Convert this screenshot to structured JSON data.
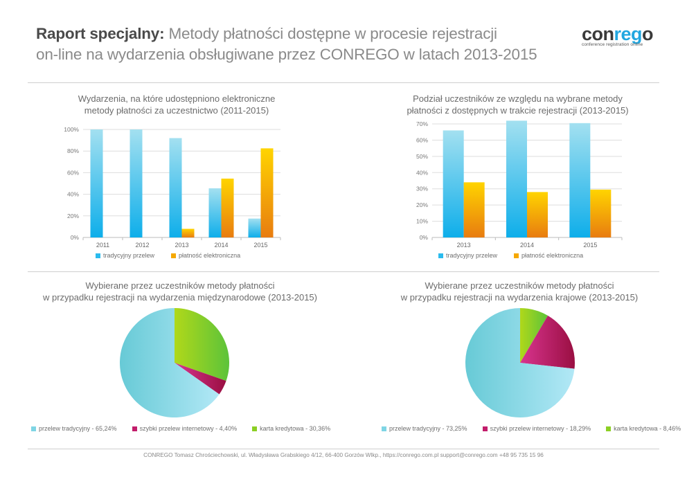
{
  "header": {
    "title_bold": "Raport specjalny:",
    "title_rest_line1": "Metody płatności dostępne w procesie rejestracji",
    "title_line2": "on-line na wydarzenia obsługiwane przez CONREGO w latach 2013-2015"
  },
  "logo": {
    "word_part1": "con",
    "word_accent": "reg",
    "word_part2": "o",
    "tagline": "conference registration online"
  },
  "colors": {
    "blue_top": "#a3e0f0",
    "blue_bottom": "#0eaeea",
    "orange_top": "#ffd400",
    "orange_bottom": "#e87c10",
    "pie_blue_left": "#67cad6",
    "pie_blue_right": "#b2e8f6",
    "pie_magenta_left": "#d8348f",
    "pie_magenta_right": "#9a0f42",
    "pie_green_left": "#b0d81a",
    "pie_green_right": "#5cc33a",
    "grid": "#dddddd",
    "axis_text": "#777777"
  },
  "chart_data": [
    {
      "type": "bar",
      "title": "Wydarzenia, na które udostępniono elektroniczne metody płatności za uczestnictwo (2011-2015)",
      "title_lines": [
        "Wydarzenia, na które udostępniono elektroniczne",
        "metody płatności za uczestnictwo (2011-2015)"
      ],
      "categories": [
        "2011",
        "2012",
        "2013",
        "2014",
        "2015"
      ],
      "series": [
        {
          "name": "tradycyjny przelew",
          "values": [
            100,
            100,
            92,
            45.5,
            17.5
          ]
        },
        {
          "name": "płatność elektroniczna",
          "values": [
            0,
            0,
            8,
            54.5,
            82.5
          ]
        }
      ],
      "xlabel": "",
      "ylabel": "",
      "ylim": [
        0,
        100
      ],
      "yticks": [
        "0%",
        "20%",
        "40%",
        "60%",
        "80%",
        "100%"
      ],
      "ytick_values": [
        0,
        20,
        40,
        60,
        80,
        100
      ],
      "grid": true,
      "legend_position": "bottom"
    },
    {
      "type": "bar",
      "title": "Podział uczestników ze względu na wybrane metody płatności z dostępnych w trakcie rejestracji (2013-2015)",
      "title_lines": [
        "Podział uczestników ze względu na wybrane metody",
        "płatności z dostępnych w trakcie rejestracji (2013-2015)"
      ],
      "categories": [
        "2013",
        "2014",
        "2015"
      ],
      "series": [
        {
          "name": "tradycyjny przelew",
          "values": [
            66,
            72,
            70.5
          ]
        },
        {
          "name": "płatność elektroniczna",
          "values": [
            34,
            28,
            29.5
          ]
        }
      ],
      "xlabel": "",
      "ylabel": "",
      "ylim": [
        0,
        70
      ],
      "yticks": [
        "0%",
        "10%",
        "20%",
        "30%",
        "40%",
        "50%",
        "60%",
        "70%"
      ],
      "ytick_values": [
        0,
        10,
        20,
        30,
        40,
        50,
        60,
        70
      ],
      "grid": true,
      "legend_position": "bottom"
    },
    {
      "type": "pie",
      "title": "Wybierane przez uczestników metody płatności w przypadku rejestracji na wydarzenia międzynarodowe (2013-2015)",
      "title_lines": [
        "Wybierane przez uczestników metody płatności",
        "w przypadku rejestracji na wydarzenia międzynarodowe (2013-2015)"
      ],
      "slices": [
        {
          "name": "przelew tradycyjny",
          "value": 65.24,
          "label": "przelew tradycyjny - 65,24%"
        },
        {
          "name": "szybki przelew internetowy",
          "value": 4.4,
          "label": "szybki przelew internetowy - 4,40%"
        },
        {
          "name": "karta kredytowa",
          "value": 30.36,
          "label": "karta kredytowa - 30,36%"
        }
      ],
      "draw_order": [
        "karta kredytowa",
        "szybki przelew internetowy",
        "przelew tradycyjny"
      ],
      "legend_position": "bottom"
    },
    {
      "type": "pie",
      "title": "Wybierane przez uczestników metody płatności w przypadku rejestracji na wydarzenia krajowe (2013-2015)",
      "title_lines": [
        "Wybierane przez uczestników metody płatności",
        "w przypadku rejestracji na wydarzenia krajowe (2013-2015)"
      ],
      "slices": [
        {
          "name": "przelew tradycyjny",
          "value": 73.25,
          "label": "przelew tradycyjny - 73,25%"
        },
        {
          "name": "szybki przelew internetowy",
          "value": 18.29,
          "label": "szybki przelew internetowy - 18,29%"
        },
        {
          "name": "karta kredytowa",
          "value": 8.46,
          "label": "karta kredytowa - 8,46%"
        }
      ],
      "draw_order": [
        "karta kredytowa",
        "szybki przelew internetowy",
        "przelew tradycyjny"
      ],
      "legend_position": "bottom"
    }
  ],
  "footer": {
    "text": "CONREGO Tomasz Chrościechowski, ul. Władysława Grabskiego 4/12, 66-400 Gorzów Wlkp., https://conrego.com.pl  support@conrego.com   +48 95 735 15 96"
  }
}
